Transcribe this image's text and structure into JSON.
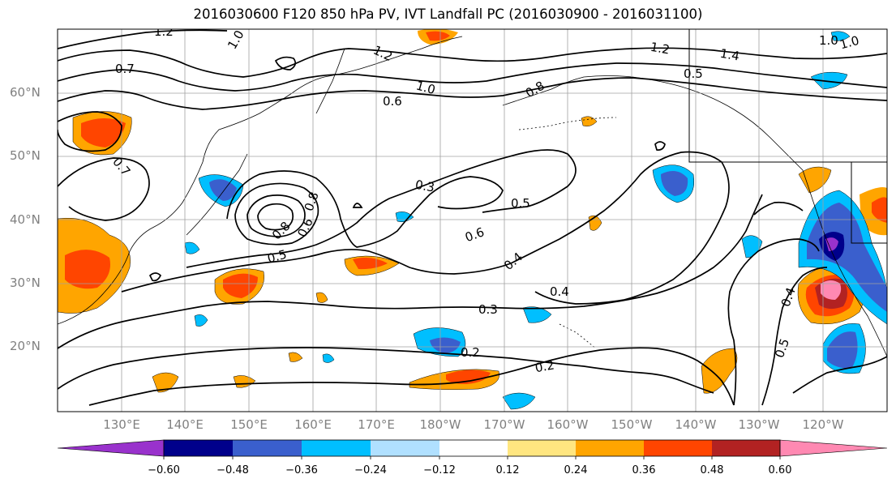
{
  "title": "2016030600 F120 850 hPa PV, IVT Landfall PC (2016030900 - 2016031100)",
  "latitude_labels": [
    "60°N",
    "50°N",
    "40°N",
    "30°N",
    "20°N"
  ],
  "longitude_labels": [
    "130°E",
    "140°E",
    "150°E",
    "160°E",
    "170°E",
    "180°W",
    "170°W",
    "160°W",
    "150°W",
    "140°W",
    "130°W",
    "120°W"
  ],
  "colorbar": {
    "ticks": [
      "−0.60",
      "−0.48",
      "−0.36",
      "−0.24",
      "−0.12",
      "0.12",
      "0.24",
      "0.36",
      "0.48",
      "0.60"
    ],
    "colors": [
      "#9932cc",
      "#00008b",
      "#3a5fcd",
      "#00bfff",
      "#b0e0ff",
      "#ffffff",
      "#ffe680",
      "#ffa500",
      "#ff4500",
      "#b22222",
      "#ff89b2"
    ]
  },
  "contour_labels": [
    "1.2",
    "1.0",
    "1.2",
    "0.7",
    "1.0",
    "0.6",
    "0.8",
    "1.0",
    "0.7",
    "1.2",
    "1.4",
    "1.0",
    "0.5",
    "0.3",
    "0.5",
    "0.6",
    "0.8",
    "0.6",
    "0.8",
    "0.5",
    "0.4",
    "0.4",
    "0.3",
    "0.2",
    "0.2",
    "0.4",
    "0.5"
  ]
}
